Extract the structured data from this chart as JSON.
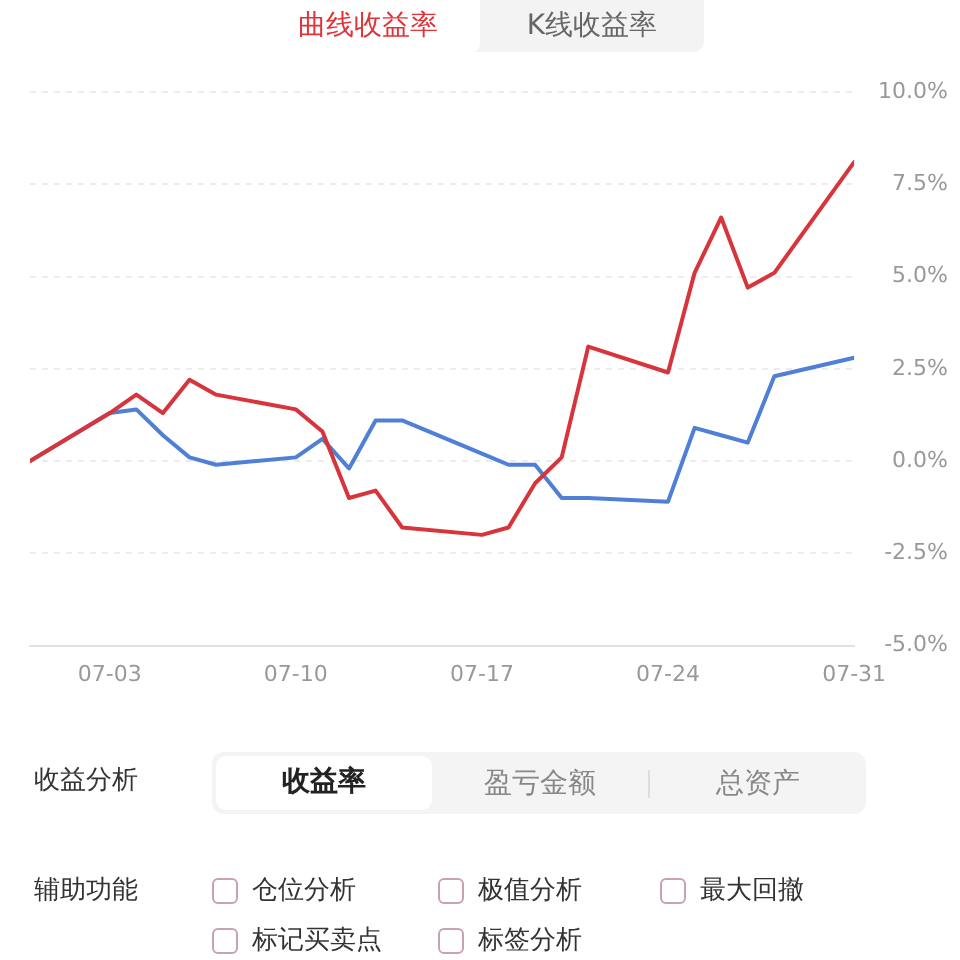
{
  "chart_data": [
    {
      "type": "other",
      "annotations": [
        "曲线收益率",
        "K线收益率"
      ]
    },
    {
      "type": "line",
      "xlim": [
        "--06-30",
        "--07-31"
      ],
      "xticks": [
        {
          "value": "--07-03",
          "label": "07-03"
        },
        {
          "value": "--07-10",
          "label": "07-10"
        },
        {
          "value": "--07-17",
          "label": "07-17"
        },
        {
          "value": "--07-24",
          "label": "07-24"
        },
        {
          "value": "--07-31",
          "label": "07-31"
        }
      ],
      "ylim": [
        -5,
        10
      ],
      "yticks": [
        {
          "value": -5,
          "label": "-5.0%"
        },
        {
          "value": -2.5,
          "label": "-2.5%"
        },
        {
          "value": 0,
          "label": "0.0%"
        },
        {
          "value": 2.5,
          "label": "2.5%"
        },
        {
          "value": 5,
          "label": "5.0%"
        },
        {
          "value": 7.5,
          "label": "7.5%"
        },
        {
          "value": 10,
          "label": "10.0%"
        }
      ],
      "grid": "y",
      "series": [
        {
          "color": "#d8343c",
          "x": [
            "--06-30",
            "--07-03",
            "--07-04",
            "--07-05",
            "--07-06",
            "--07-07",
            "--07-10",
            "--07-11",
            "--07-12",
            "--07-13",
            "--07-14",
            "--07-17",
            "--07-18",
            "--07-19",
            "--07-20",
            "--07-21",
            "--07-24",
            "--07-25",
            "--07-26",
            "--07-27",
            "--07-28",
            "--07-31"
          ],
          "values": [
            0,
            1.3,
            1.8,
            1.3,
            2.2,
            1.8,
            1.4,
            0.8,
            -1.0,
            -0.8,
            -1.8,
            -2.0,
            -1.8,
            -0.6,
            0.1,
            3.1,
            2.4,
            5.1,
            6.6,
            4.7,
            5.1,
            8.1
          ]
        },
        {
          "color": "#4f7fd6",
          "x": [
            "--06-30",
            "--07-03",
            "--07-04",
            "--07-05",
            "--07-06",
            "--07-07",
            "--07-10",
            "--07-11",
            "--07-12",
            "--07-13",
            "--07-14",
            "--07-17",
            "--07-18",
            "--07-19",
            "--07-20",
            "--07-21",
            "--07-24",
            "--07-25",
            "--07-26",
            "--07-27",
            "--07-28",
            "--07-31"
          ],
          "values": [
            0,
            1.3,
            1.4,
            0.7,
            0.1,
            -0.1,
            0.1,
            0.6,
            -0.2,
            1.1,
            1.1,
            0.2,
            -0.1,
            -0.1,
            -1.0,
            -1.0,
            -1.1,
            0.9,
            0.7,
            0.5,
            2.3,
            2.8
          ]
        }
      ]
    },
    {
      "type": "other",
      "annotations": [
        "收益分析",
        "收益率",
        "盈亏金额",
        "总资产",
        "辅助功能",
        "仓位分析",
        "极值分析",
        "最大回撤",
        "标记买卖点",
        "标签分析"
      ]
    }
  ]
}
